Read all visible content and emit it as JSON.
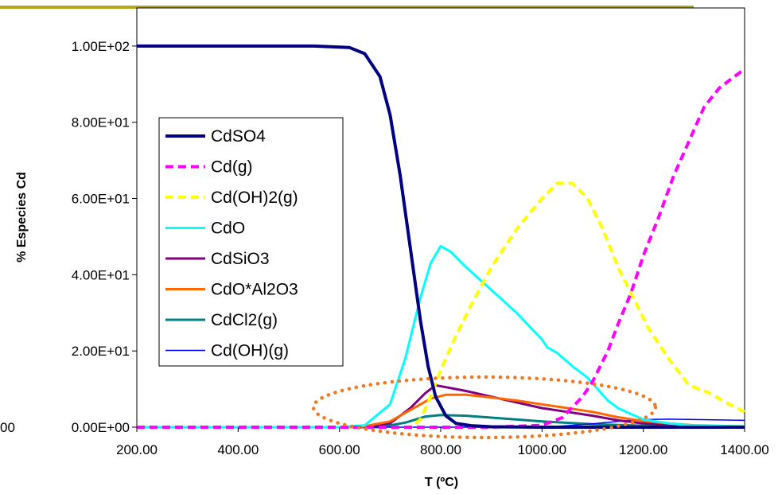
{
  "chart_data": {
    "type": "line",
    "title": "",
    "xlabel": "T (ºC)",
    "ylabel": "% Especies Cd",
    "xlim": [
      200,
      1400
    ],
    "ylim": [
      0,
      110
    ],
    "x_ticks": [
      {
        "value": 200,
        "label": "200.00"
      },
      {
        "value": 400,
        "label": "400.00"
      },
      {
        "value": 600,
        "label": "600.00"
      },
      {
        "value": 800,
        "label": "800.00"
      },
      {
        "value": 1000,
        "label": "1000.00"
      },
      {
        "value": 1200,
        "label": "1200.00"
      },
      {
        "value": 1400,
        "label": "1400.00"
      }
    ],
    "y_ticks": [
      {
        "value": 0,
        "label": "0.00E+00"
      },
      {
        "value": 20,
        "label": "2.00E+01"
      },
      {
        "value": 40,
        "label": "4.00E+01"
      },
      {
        "value": 60,
        "label": "6.00E+01"
      },
      {
        "value": 80,
        "label": "8.00E+01"
      },
      {
        "value": 100,
        "label": "1.00E+02"
      }
    ],
    "clipped_left_label": "00",
    "grid": false,
    "legend_position": "left-middle",
    "series": [
      {
        "name": "CdSO4",
        "color": "#000080",
        "dash": "solid",
        "width": 4,
        "points": [
          [
            200,
            100
          ],
          [
            400,
            100
          ],
          [
            550,
            100
          ],
          [
            620,
            99.6
          ],
          [
            650,
            98
          ],
          [
            680,
            92
          ],
          [
            700,
            82
          ],
          [
            720,
            66
          ],
          [
            740,
            47
          ],
          [
            760,
            28
          ],
          [
            775,
            16
          ],
          [
            790,
            8
          ],
          [
            810,
            3
          ],
          [
            830,
            1
          ],
          [
            860,
            0.4
          ],
          [
            900,
            0.1
          ],
          [
            1000,
            0
          ],
          [
            1400,
            0
          ]
        ]
      },
      {
        "name": "Cd(g)",
        "color": "#ff00ff",
        "dash": "dashed",
        "width": 4,
        "points": [
          [
            200,
            0
          ],
          [
            900,
            0
          ],
          [
            1000,
            0.5
          ],
          [
            1040,
            2.5
          ],
          [
            1080,
            8
          ],
          [
            1100,
            12
          ],
          [
            1130,
            20
          ],
          [
            1150,
            27
          ],
          [
            1175,
            35
          ],
          [
            1200,
            45
          ],
          [
            1230,
            55
          ],
          [
            1260,
            66
          ],
          [
            1290,
            75
          ],
          [
            1320,
            84
          ],
          [
            1350,
            89
          ],
          [
            1380,
            92
          ],
          [
            1400,
            94
          ]
        ]
      },
      {
        "name": "Cd(OH)2(g)",
        "color": "#ffff00",
        "dash": "dashed",
        "width": 4,
        "points": [
          [
            200,
            0
          ],
          [
            740,
            0
          ],
          [
            760,
            2
          ],
          [
            780,
            8
          ],
          [
            800,
            15
          ],
          [
            830,
            24
          ],
          [
            860,
            32
          ],
          [
            900,
            42
          ],
          [
            950,
            52
          ],
          [
            1000,
            60
          ],
          [
            1030,
            64
          ],
          [
            1060,
            64
          ],
          [
            1090,
            60
          ],
          [
            1120,
            52
          ],
          [
            1150,
            42
          ],
          [
            1180,
            34
          ],
          [
            1210,
            26
          ],
          [
            1250,
            18
          ],
          [
            1290,
            11
          ],
          [
            1330,
            9
          ],
          [
            1370,
            6
          ],
          [
            1400,
            4
          ]
        ]
      },
      {
        "name": "CdO",
        "color": "#00ffff",
        "dash": "solid",
        "width": 3,
        "points": [
          [
            200,
            0
          ],
          [
            600,
            0
          ],
          [
            650,
            0.5
          ],
          [
            700,
            6
          ],
          [
            730,
            18
          ],
          [
            760,
            34
          ],
          [
            780,
            43
          ],
          [
            800,
            47.5
          ],
          [
            820,
            46
          ],
          [
            850,
            42
          ],
          [
            900,
            36
          ],
          [
            950,
            30
          ],
          [
            1000,
            23
          ],
          [
            1010,
            21
          ],
          [
            1030,
            19.5
          ],
          [
            1060,
            16
          ],
          [
            1090,
            13
          ],
          [
            1130,
            7
          ],
          [
            1150,
            5
          ],
          [
            1200,
            2
          ],
          [
            1250,
            1
          ],
          [
            1300,
            0.4
          ],
          [
            1400,
            0.2
          ]
        ]
      },
      {
        "name": "CdSiO3",
        "color": "#800080",
        "dash": "solid",
        "width": 3,
        "points": [
          [
            200,
            0
          ],
          [
            650,
            0
          ],
          [
            700,
            1
          ],
          [
            740,
            5
          ],
          [
            770,
            9
          ],
          [
            790,
            11
          ],
          [
            810,
            10.5
          ],
          [
            850,
            9.5
          ],
          [
            900,
            8
          ],
          [
            950,
            6.5
          ],
          [
            1000,
            5
          ],
          [
            1050,
            4
          ],
          [
            1100,
            3
          ],
          [
            1150,
            1.8
          ],
          [
            1200,
            1
          ],
          [
            1250,
            0.6
          ],
          [
            1300,
            0.3
          ],
          [
            1400,
            0.1
          ]
        ]
      },
      {
        "name": "CdO*Al2O3",
        "color": "#ff6600",
        "dash": "solid",
        "width": 3,
        "points": [
          [
            200,
            0
          ],
          [
            640,
            0
          ],
          [
            700,
            1.5
          ],
          [
            740,
            4.5
          ],
          [
            780,
            7.5
          ],
          [
            810,
            8.5
          ],
          [
            850,
            8.5
          ],
          [
            900,
            7.8
          ],
          [
            950,
            7
          ],
          [
            1000,
            6
          ],
          [
            1050,
            5
          ],
          [
            1100,
            4
          ],
          [
            1150,
            2.6
          ],
          [
            1200,
            1.6
          ],
          [
            1250,
            1
          ],
          [
            1300,
            0.5
          ],
          [
            1400,
            0.2
          ]
        ]
      },
      {
        "name": "CdCl2(g)",
        "color": "#008080",
        "dash": "solid",
        "width": 3,
        "points": [
          [
            200,
            0
          ],
          [
            680,
            0
          ],
          [
            730,
            1.2
          ],
          [
            770,
            2.8
          ],
          [
            800,
            3.2
          ],
          [
            850,
            3
          ],
          [
            900,
            2.5
          ],
          [
            1000,
            1.5
          ],
          [
            1100,
            0.8
          ],
          [
            1200,
            0.4
          ],
          [
            1300,
            0.2
          ],
          [
            1400,
            0.1
          ]
        ]
      },
      {
        "name": "Cd(OH)(g)",
        "color": "#0000ff",
        "dash": "solid",
        "width": 1.5,
        "points": [
          [
            200,
            0
          ],
          [
            1000,
            0
          ],
          [
            1050,
            0.4
          ],
          [
            1100,
            0.9
          ],
          [
            1150,
            1.5
          ],
          [
            1200,
            2
          ],
          [
            1250,
            2.1
          ],
          [
            1300,
            2
          ],
          [
            1350,
            1.9
          ],
          [
            1400,
            1.8
          ]
        ]
      }
    ]
  }
}
